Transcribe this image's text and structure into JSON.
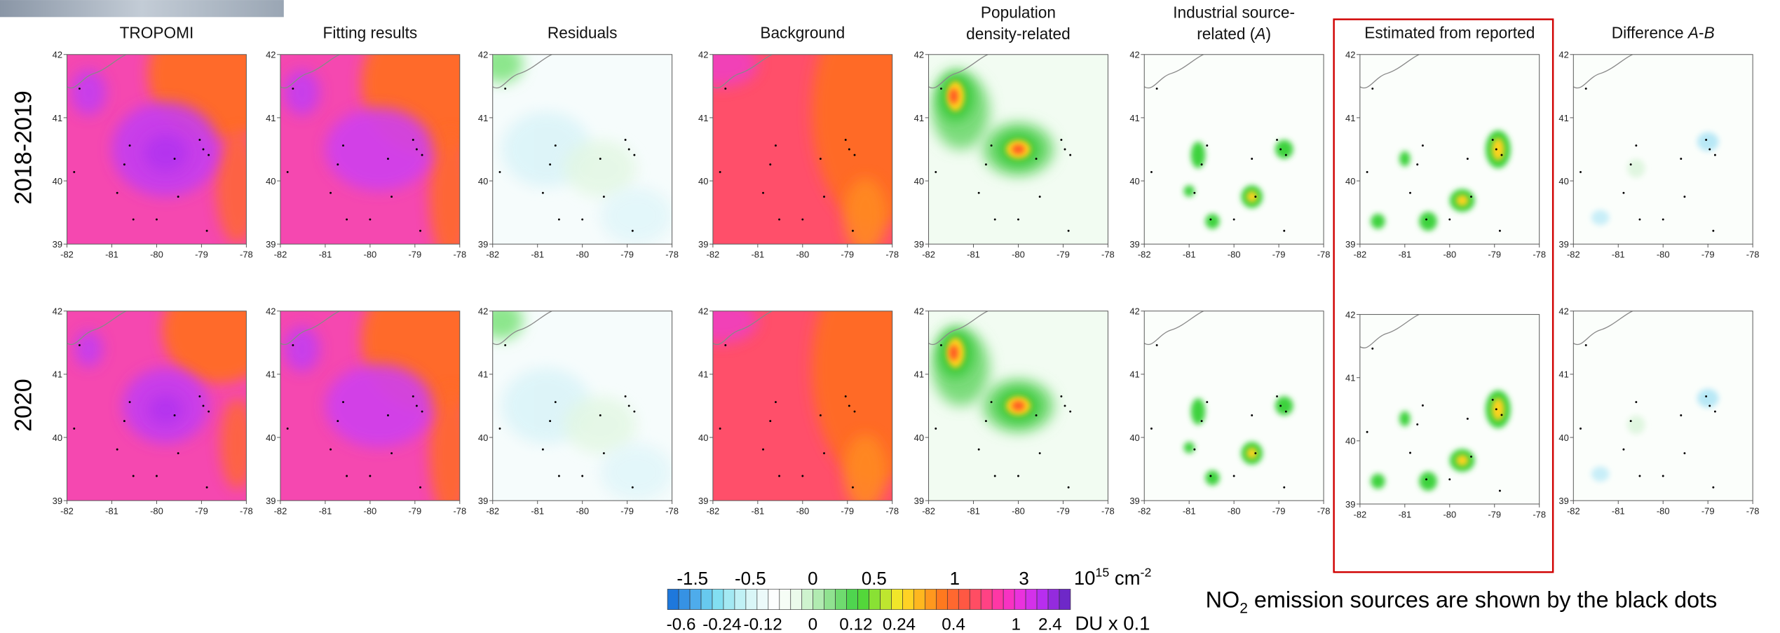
{
  "row_labels": [
    "2018-2019",
    "2020"
  ],
  "panels": [
    {
      "title": [
        [
          {
            "text": "TROPOMI"
          }
        ]
      ]
    },
    {
      "title": [
        [
          {
            "text": "Fitting results"
          }
        ]
      ]
    },
    {
      "title": [
        [
          {
            "text": "Residuals"
          }
        ]
      ]
    },
    {
      "title": [
        [
          {
            "text": "Background"
          }
        ]
      ]
    },
    {
      "title": [
        [
          {
            "text": "Population"
          }
        ],
        [
          {
            "text": "density-related"
          }
        ]
      ]
    },
    {
      "title": [
        [
          {
            "text": "Industrial source-"
          }
        ],
        [
          {
            "text": "related ("
          },
          {
            "text": "A",
            "italic": true
          },
          {
            "text": ")"
          }
        ]
      ]
    },
    {
      "title": [
        [
          {
            "text": "Estimated from reported"
          }
        ]
      ]
    },
    {
      "title": [
        [
          {
            "text": "Difference "
          },
          {
            "text": "A",
            "italic": true
          },
          {
            "text": "-"
          },
          {
            "text": "B",
            "italic": true
          }
        ]
      ]
    }
  ],
  "axes": {
    "xticks": [
      -82,
      -81,
      -80,
      -79,
      -78
    ],
    "yticks": [
      39,
      40,
      41,
      42
    ]
  },
  "colorbar": {
    "top_labels": [
      -1.5,
      -0.5,
      0,
      0.5,
      1,
      3
    ],
    "top_unit": [
      "10",
      "15",
      " cm",
      "-2"
    ],
    "bottom_labels": [
      -0.6,
      -0.24,
      -0.12,
      0,
      0.12,
      0.24,
      0.4,
      1,
      2.4
    ],
    "bottom_unit": "DU x 0.1"
  },
  "note": [
    "NO",
    "2",
    " emission sources are shown by the black dots"
  ]
}
